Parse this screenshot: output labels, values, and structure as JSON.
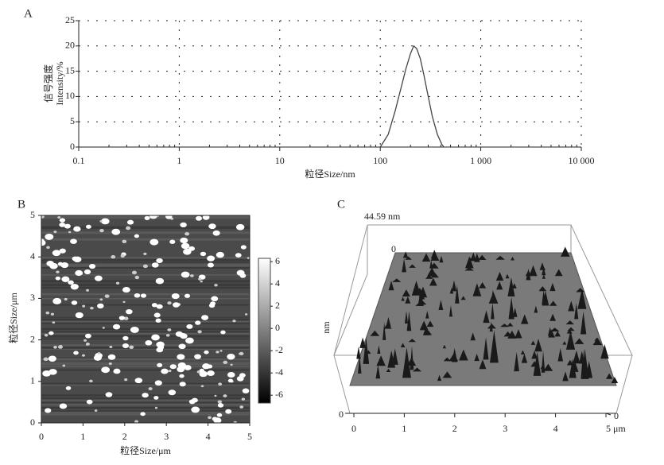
{
  "chart_data": [
    {
      "type": "line",
      "label": "A",
      "xlabel": "粒径Size/nm",
      "ylabel": [
        "信号强度",
        "Intensity/%"
      ],
      "xlog": true,
      "grid": true,
      "color": "#444444",
      "x": [
        100,
        120,
        140,
        160,
        180,
        200,
        215,
        230,
        250,
        270,
        300,
        330,
        370,
        410,
        430
      ],
      "values": [
        0,
        2.5,
        7,
        11.5,
        15.5,
        18.5,
        20,
        19.5,
        17.5,
        14.5,
        10,
        6,
        2.5,
        0.5,
        0
      ],
      "xlim": [
        0.1,
        10000
      ],
      "ylim": [
        0,
        25
      ],
      "xticks": [
        0.1,
        1,
        10,
        100,
        {
          "value": 1000,
          "label": "1 000"
        },
        {
          "value": 10000,
          "label": "10 000"
        }
      ],
      "yticks": [
        0,
        5,
        10,
        15,
        20,
        25
      ]
    },
    {
      "type": "heatmap",
      "label": "B",
      "xlabel": "粒径Size/μm",
      "ylabel": "粒径Size/μm",
      "xlim": [
        0,
        5
      ],
      "ylim": [
        0,
        5
      ],
      "xticks": [
        0,
        1,
        2,
        3,
        4,
        5
      ],
      "yticks": [
        0,
        1,
        2,
        3,
        4,
        5
      ],
      "clim": [
        -6.7,
        6.3
      ],
      "cticks": [
        -6,
        -4,
        -2,
        0,
        2,
        4,
        6
      ]
    },
    {
      "type": "surface3d",
      "label": "C",
      "zlabel": "nm",
      "zmax_label": "44.59 nm",
      "xlim": [
        0,
        5
      ],
      "xticks": [
        0,
        1,
        2,
        3,
        4,
        {
          "value": 5,
          "label": "5 μm"
        }
      ],
      "yticks": [
        0
      ],
      "zticks": [
        0
      ],
      "corner_labels": [
        "0"
      ]
    }
  ]
}
